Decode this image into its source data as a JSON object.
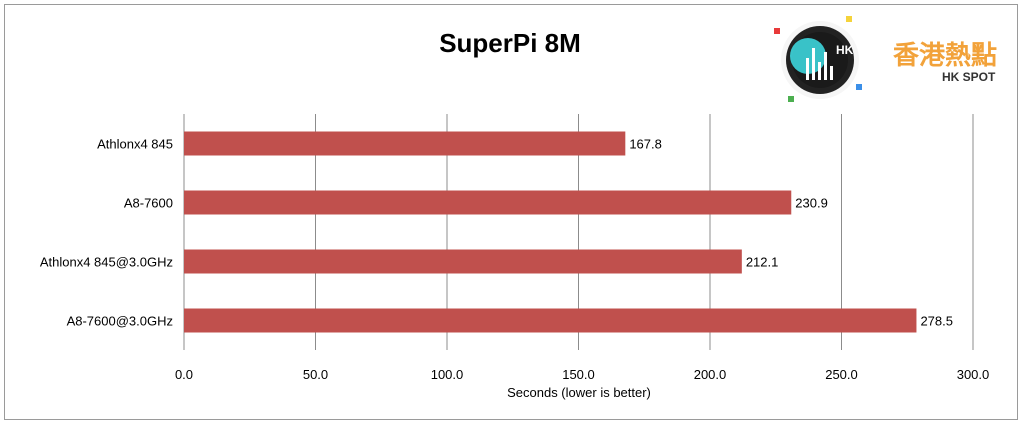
{
  "chart_data": {
    "type": "bar",
    "orientation": "horizontal",
    "title": "SuperPi 8M",
    "xlabel": "Seconds (lower is better)",
    "ylabel": "",
    "xlim": [
      0,
      300
    ],
    "x_ticks": [
      "0.0",
      "50.0",
      "100.0",
      "150.0",
      "200.0",
      "250.0",
      "300.0"
    ],
    "x_tick_values": [
      0,
      50,
      100,
      150,
      200,
      250,
      300
    ],
    "grid": "vertical",
    "categories": [
      "Athlonx4 845",
      "A8-7600",
      "Athlonx4 845@3.0GHz",
      "A8-7600@3.0GHz"
    ],
    "values": [
      167.8,
      230.9,
      212.1,
      278.5
    ],
    "value_labels": [
      "167.8",
      "230.9",
      "212.1",
      "278.5"
    ],
    "bar_color": "#c0504d"
  },
  "logo": {
    "cjk_text": "香港熱點",
    "sub_text": "HK SPOT",
    "badge_text": "HK",
    "accent_color": "#f2a23a"
  }
}
